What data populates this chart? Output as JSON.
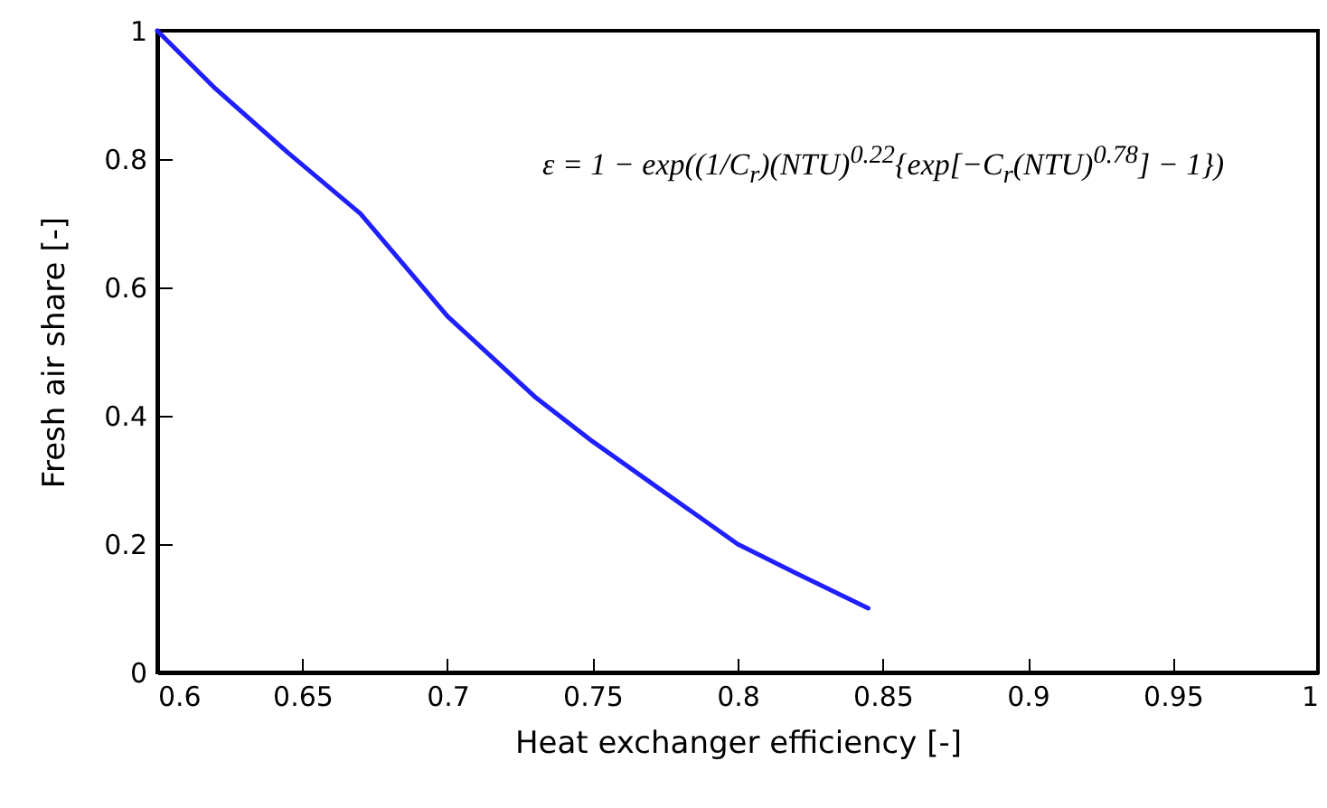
{
  "chart_data": {
    "type": "line",
    "xlabel": "Heat exchanger efficiency [-]",
    "ylabel": "Fresh air share [-]",
    "annotations": [
      "ε = 1 − exp((1/C$_{r}$)(NTU)$^{0.22}${exp[−C$_{r}$(NTU)$^{0.78}$] − 1})"
    ],
    "x": [
      0.6,
      0.62,
      0.645,
      0.67,
      0.7,
      0.73,
      0.75,
      0.77,
      0.8,
      0.82,
      0.845
    ],
    "series": [
      {
        "color": "#1f1fff",
        "values": [
          1,
          0.91,
          0.81,
          0.715,
          0.555,
          0.43,
          0.36,
          0.296,
          0.2,
          0.155,
          0.1
        ]
      }
    ],
    "xlim": [
      0.6,
      1
    ],
    "xticks": [
      0.6,
      0.65,
      0.7,
      0.75,
      0.8,
      0.85,
      0.9,
      0.95,
      1
    ],
    "ylim": [
      0,
      1
    ],
    "yticks": [
      0,
      0.2,
      0.4,
      0.6,
      0.8,
      1
    ],
    "grid": false,
    "marker": "none",
    "line_style": "solid"
  }
}
